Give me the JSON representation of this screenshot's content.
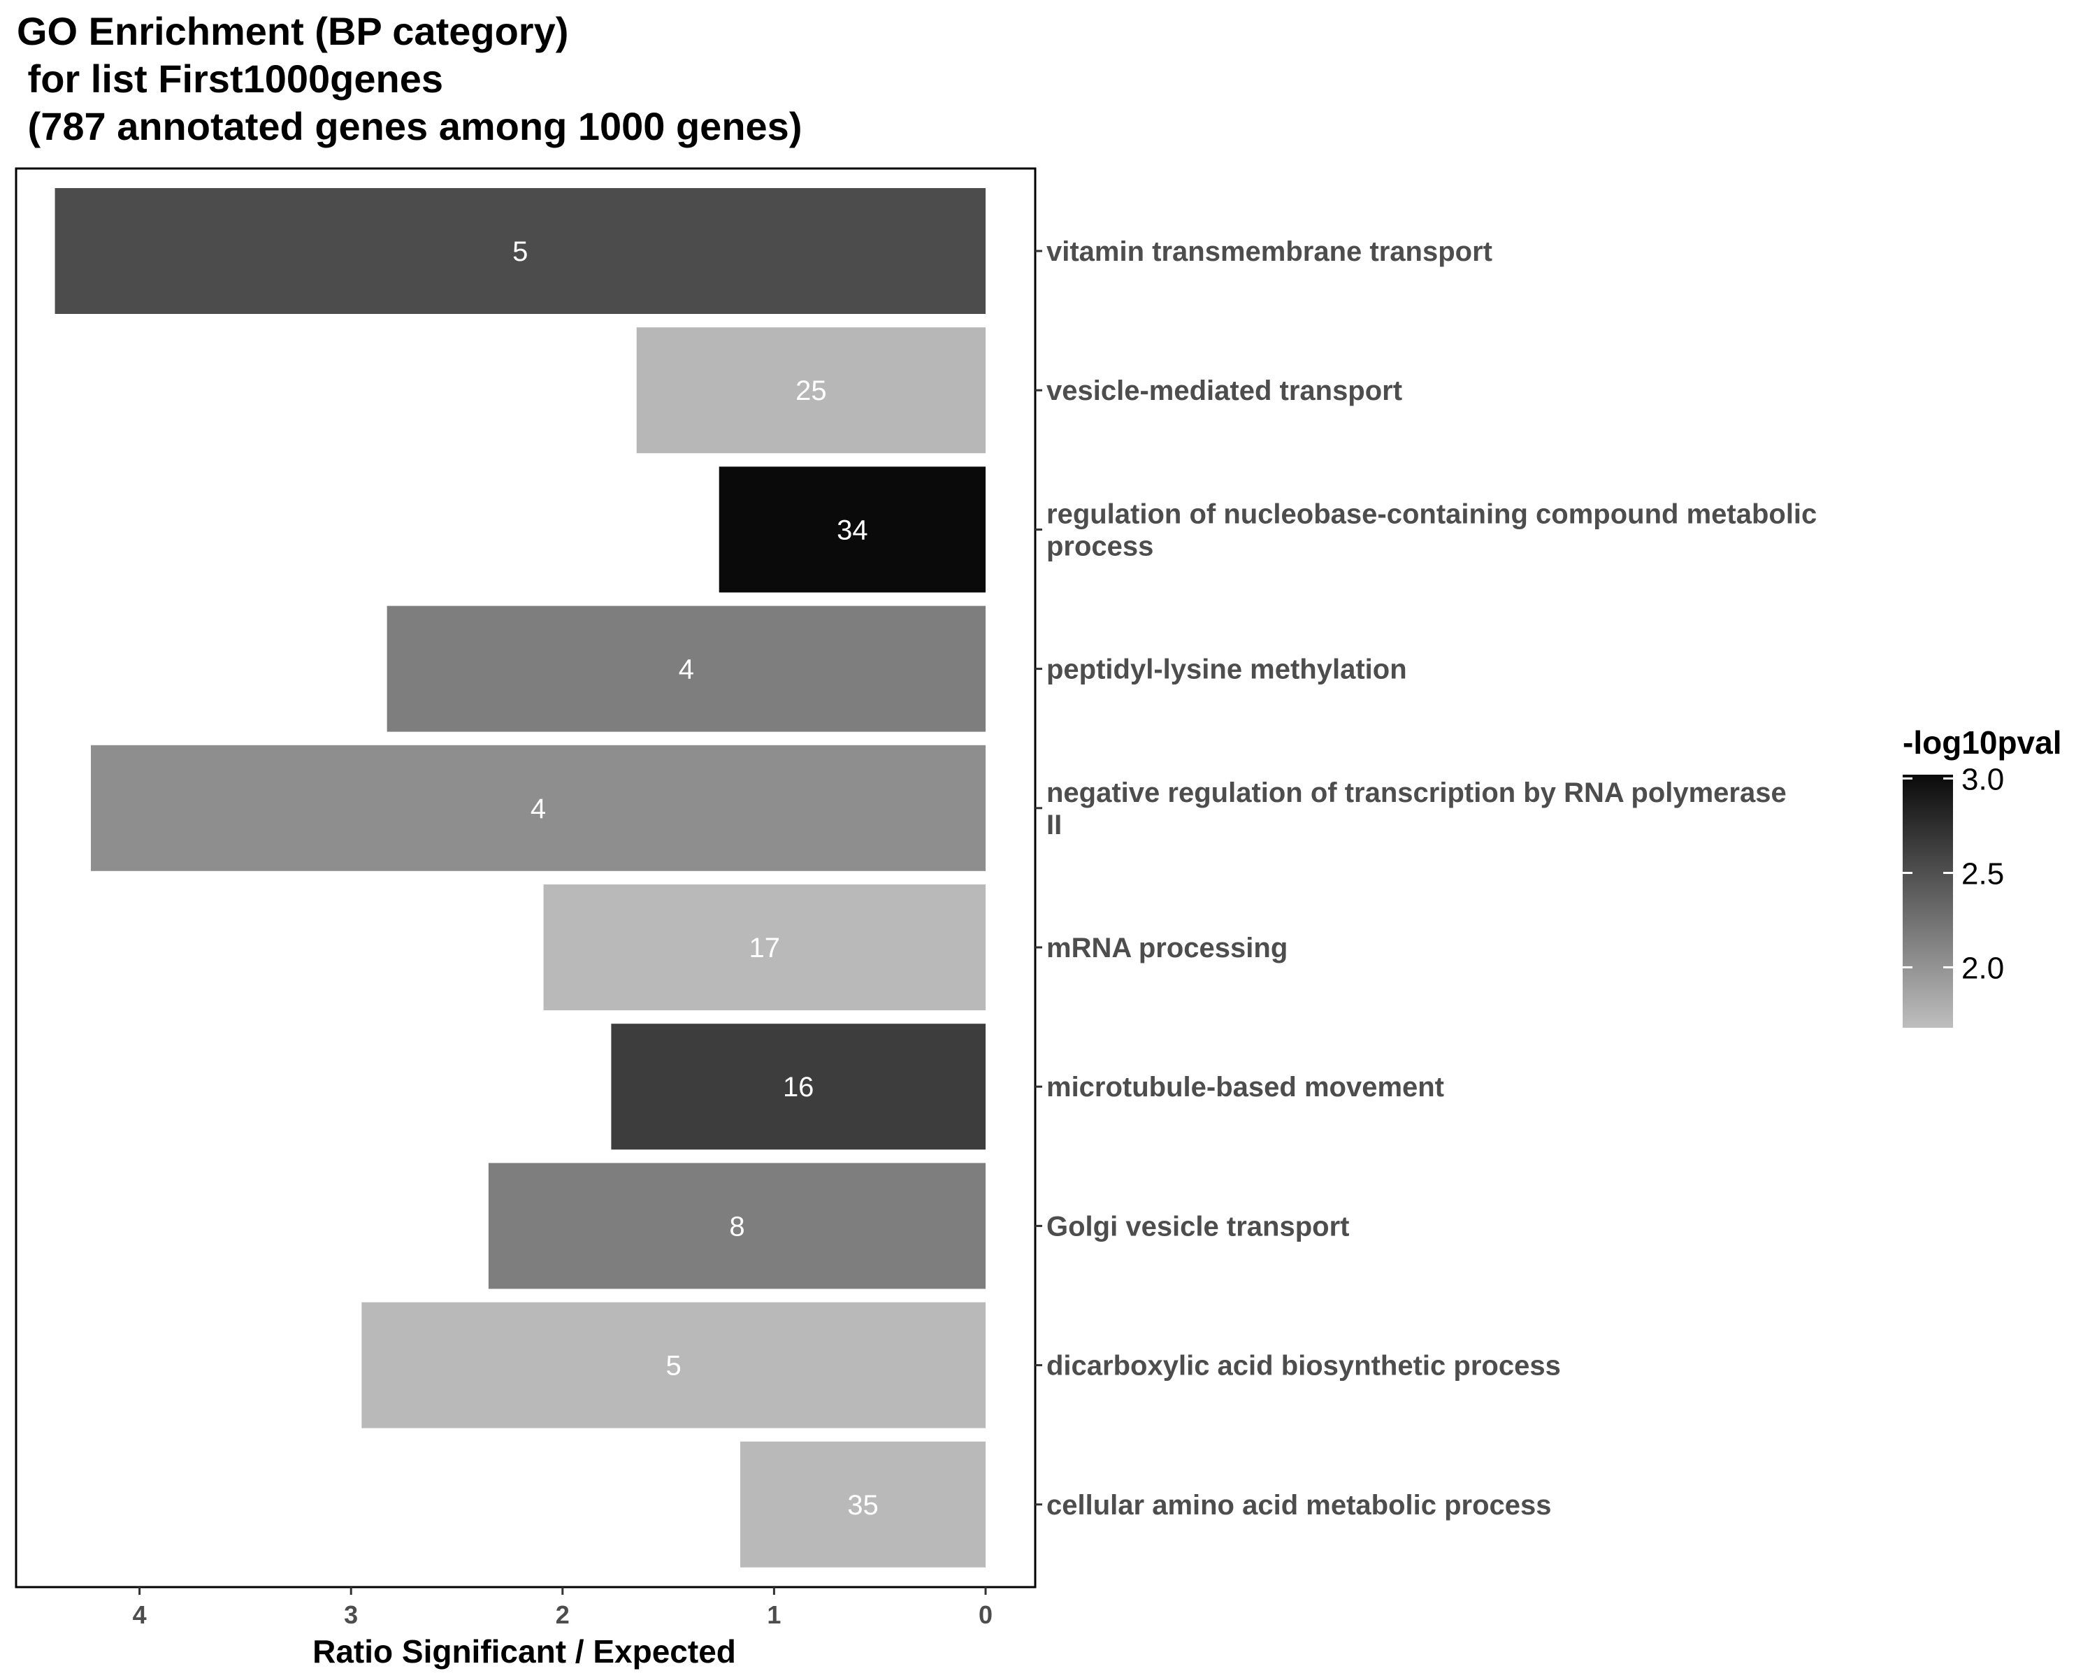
{
  "chart_data": {
    "type": "bar",
    "orientation": "horizontal",
    "x_reversed": true,
    "title_lines": [
      "GO Enrichment (BP category)",
      " for list First1000genes",
      " (787 annotated genes among 1000 genes)"
    ],
    "xlabel": "Ratio Significant / Expected",
    "ylabel": "",
    "xlim": [
      0,
      4.6
    ],
    "xticks": [
      0,
      1,
      2,
      3,
      4
    ],
    "legend_position": "right",
    "categories": [
      {
        "label_lines": [
          "vitamin transmembrane transport"
        ],
        "value": 4.4,
        "count": "5",
        "neglog10pval": 2.53
      },
      {
        "label_lines": [
          "vesicle-mediated transport"
        ],
        "value": 1.65,
        "count": "25",
        "neglog10pval": 1.73
      },
      {
        "label_lines": [
          "regulation of nucleobase-containing compound metabolic",
          "process"
        ],
        "value": 1.26,
        "count": "34",
        "neglog10pval": 3.02
      },
      {
        "label_lines": [
          "peptidyl-lysine methylation"
        ],
        "value": 2.83,
        "count": "4",
        "neglog10pval": 2.16
      },
      {
        "label_lines": [
          "negative regulation of transcription by RNA polymerase",
          "II"
        ],
        "value": 4.23,
        "count": "4",
        "neglog10pval": 2.04
      },
      {
        "label_lines": [
          "mRNA processing"
        ],
        "value": 2.09,
        "count": "17",
        "neglog10pval": 1.72
      },
      {
        "label_lines": [
          "microtubule-based movement"
        ],
        "value": 1.77,
        "count": "16",
        "neglog10pval": 2.64
      },
      {
        "label_lines": [
          "Golgi vesicle transport"
        ],
        "value": 2.35,
        "count": "8",
        "neglog10pval": 2.16
      },
      {
        "label_lines": [
          "dicarboxylic acid biosynthetic process"
        ],
        "value": 2.95,
        "count": "5",
        "neglog10pval": 1.72
      },
      {
        "label_lines": [
          "cellular amino acid metabolic process"
        ],
        "value": 1.16,
        "count": "35",
        "neglog10pval": 1.72
      }
    ],
    "legend": {
      "title": "-log10pval",
      "min": 1.68,
      "max": 3.02,
      "ticks": [
        {
          "value": 3.0,
          "label": "3.0"
        },
        {
          "value": 2.5,
          "label": "2.5"
        },
        {
          "value": 2.0,
          "label": "2.0"
        }
      ],
      "color_low": "#bebebe",
      "color_high": "#0a0a0a"
    }
  }
}
